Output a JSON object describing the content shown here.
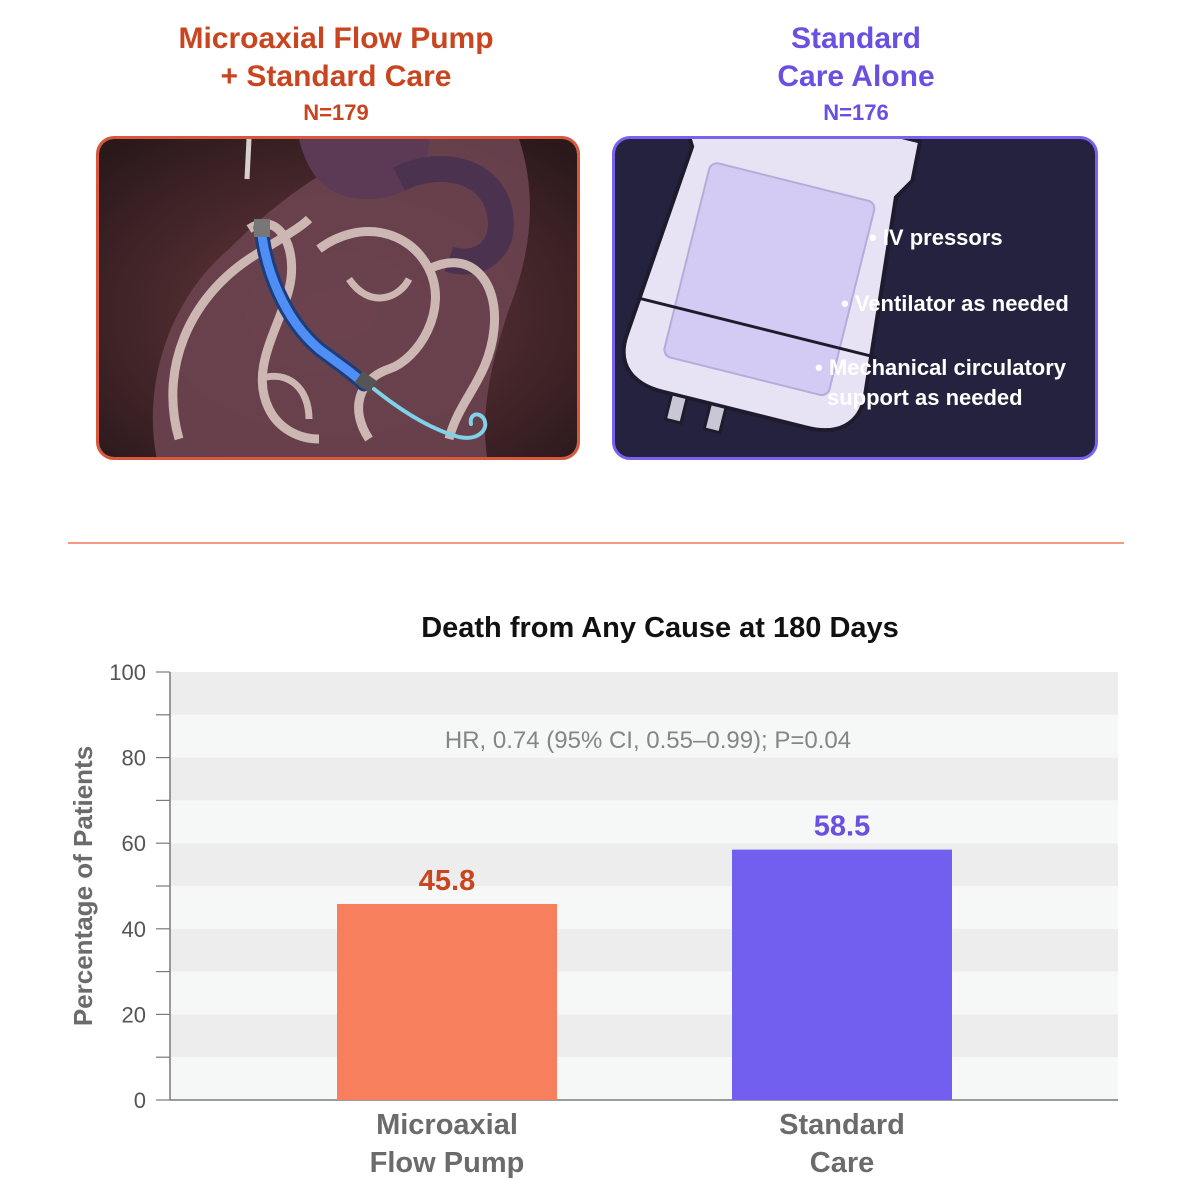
{
  "groups": {
    "pump": {
      "title_line1": "Microaxial Flow Pump",
      "title_line2": "+ Standard Care",
      "n": "N=179"
    },
    "care": {
      "title_line1": "Standard",
      "title_line2": "Care Alone",
      "n": "N=176",
      "bullets": [
        "• IV pressors",
        "• Ventilator as needed",
        "• Mechanical circulatory",
        "support as needed"
      ]
    }
  },
  "colors": {
    "pump": "#f87f5e",
    "pump_text": "#c9451f",
    "care": "#725ff0",
    "care_text": "#6a4fe0"
  },
  "chart_data": {
    "type": "bar",
    "title": "Death from Any Cause at 180 Days",
    "ylabel": "Percentage of Patients",
    "ylim": [
      0,
      100
    ],
    "yticks": [
      0,
      20,
      40,
      60,
      80,
      100
    ],
    "categories": [
      [
        "Microaxial",
        "Flow Pump"
      ],
      [
        "Standard",
        "Care"
      ]
    ],
    "values": [
      45.8,
      58.5
    ],
    "value_labels": [
      "45.8",
      "58.5"
    ],
    "annotation": "HR, 0.74 (95% CI, 0.55–0.99); P=0.04",
    "grid": true
  }
}
